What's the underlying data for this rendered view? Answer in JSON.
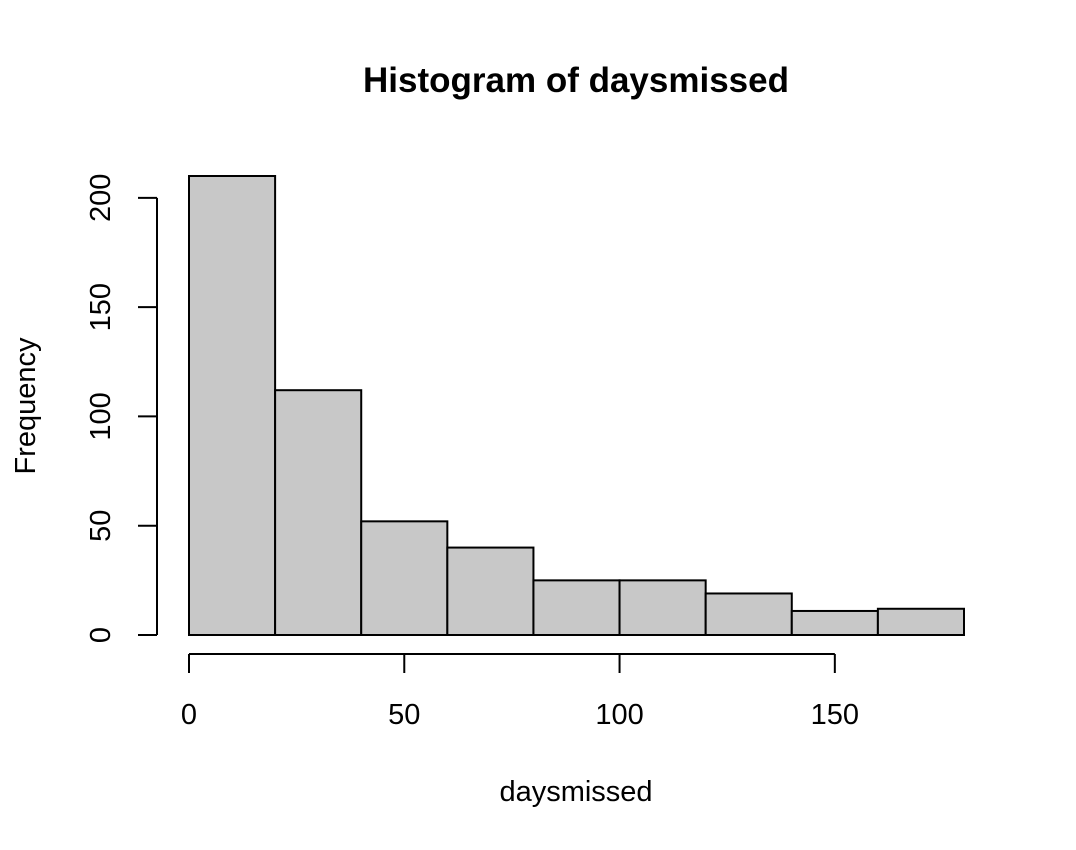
{
  "chart_data": {
    "type": "bar",
    "subtype": "histogram",
    "title": "Histogram of daysmissed",
    "xlabel": "daysmissed",
    "ylabel": "Frequency",
    "bin_edges": [
      0,
      20,
      40,
      60,
      80,
      100,
      120,
      140,
      160,
      180
    ],
    "values": [
      210,
      112,
      52,
      40,
      25,
      25,
      19,
      11,
      12
    ],
    "xlim": [
      0,
      180
    ],
    "ylim": [
      0,
      210
    ],
    "x_ticks": [
      0,
      50,
      100,
      150
    ],
    "x_tick_labels": [
      "0",
      "50",
      "100",
      "150"
    ],
    "y_ticks": [
      0,
      50,
      100,
      150,
      200
    ],
    "y_tick_labels": [
      "0",
      "50",
      "100",
      "150",
      "200"
    ],
    "bar_color": "#c8c8c8",
    "edge_color": "#000000",
    "grid": false,
    "legend": "none"
  }
}
